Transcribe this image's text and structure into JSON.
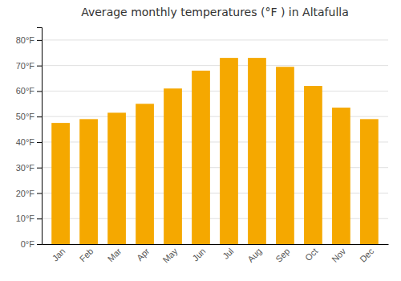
{
  "chart_data": {
    "type": "bar",
    "title": "Average monthly temperatures (°F ) in Altafulla",
    "categories": [
      "Jan",
      "Feb",
      "Mar",
      "Apr",
      "May",
      "Jun",
      "Jul",
      "Aug",
      "Sep",
      "Oct",
      "Nov",
      "Dec"
    ],
    "values": [
      47.5,
      49.0,
      51.5,
      55.0,
      61.0,
      68.0,
      73.0,
      73.0,
      69.5,
      62.0,
      53.5,
      49.0
    ],
    "color": "#F5A800",
    "ylim": [
      0,
      85
    ],
    "yticks": [
      {
        "value": 0,
        "label": "0°F"
      },
      {
        "value": 10,
        "label": "10°F"
      },
      {
        "value": 20,
        "label": "20°F"
      },
      {
        "value": 30,
        "label": "30°F"
      },
      {
        "value": 40,
        "label": "40°F"
      },
      {
        "value": 50,
        "label": "50°F"
      },
      {
        "value": 60,
        "label": "60°F"
      },
      {
        "value": 70,
        "label": "70°F"
      },
      {
        "value": 80,
        "label": "80°F"
      }
    ],
    "grid": true
  }
}
